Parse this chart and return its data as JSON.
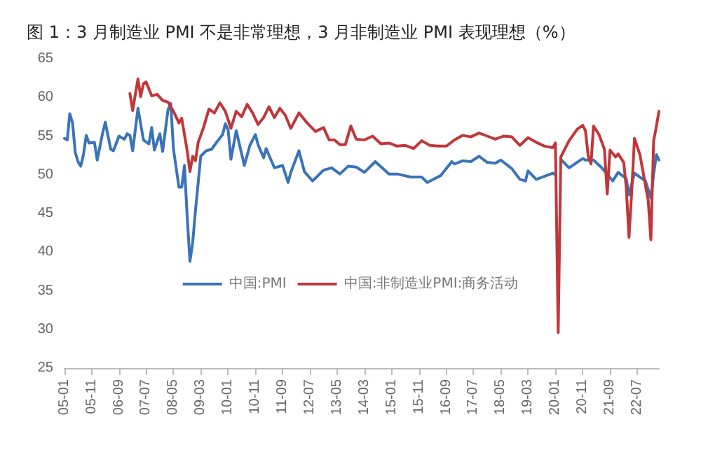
{
  "chart_data": {
    "type": "line",
    "title": "图 1：3 月制造业 PMI 不是非常理想，3 月非制造业 PMI 表现理想（%）",
    "xlim": [
      "2005-01",
      "2023-03"
    ],
    "xticks": [
      {
        "value": "2005-01",
        "label": "05-01"
      },
      {
        "value": "2005-11",
        "label": "05-11"
      },
      {
        "value": "2006-09",
        "label": "06-09"
      },
      {
        "value": "2007-07",
        "label": "07-07"
      },
      {
        "value": "2008-05",
        "label": "08-05"
      },
      {
        "value": "2009-03",
        "label": "09-03"
      },
      {
        "value": "2010-01",
        "label": "10-01"
      },
      {
        "value": "2010-11",
        "label": "10-11"
      },
      {
        "value": "2011-09",
        "label": "11-09"
      },
      {
        "value": "2012-07",
        "label": "12-07"
      },
      {
        "value": "2013-05",
        "label": "13-05"
      },
      {
        "value": "2014-03",
        "label": "14-03"
      },
      {
        "value": "2015-01",
        "label": "15-01"
      },
      {
        "value": "2015-11",
        "label": "15-11"
      },
      {
        "value": "2016-09",
        "label": "16-09"
      },
      {
        "value": "2017-07",
        "label": "17-07"
      },
      {
        "value": "2018-05",
        "label": "18-05"
      },
      {
        "value": "2019-03",
        "label": "19-03"
      },
      {
        "value": "2020-01",
        "label": "20-01"
      },
      {
        "value": "2020-11",
        "label": "20-11"
      },
      {
        "value": "2021-09",
        "label": "21-09"
      },
      {
        "value": "2022-07",
        "label": "22-07"
      }
    ],
    "ylim": [
      25,
      65
    ],
    "yticks": [
      25,
      30,
      35,
      40,
      45,
      50,
      55,
      60,
      65
    ],
    "grid": false,
    "legend": "bottom",
    "marker": "none",
    "line_style": "solid",
    "series": [
      {
        "name": "中国:PMI",
        "color": "#3b73b9",
        "x": [
          "2005-01",
          "2005-02",
          "2005-03",
          "2005-04",
          "2005-05",
          "2005-06",
          "2005-07",
          "2005-08",
          "2005-09",
          "2005-10",
          "2005-12",
          "2006-01",
          "2006-03",
          "2006-04",
          "2006-06",
          "2006-07",
          "2006-09",
          "2006-11",
          "2006-12",
          "2007-01",
          "2007-02",
          "2007-04",
          "2007-06",
          "2007-08",
          "2007-09",
          "2007-10",
          "2007-12",
          "2008-01",
          "2008-03",
          "2008-04",
          "2008-05",
          "2008-07",
          "2008-08",
          "2008-09",
          "2008-10",
          "2008-11",
          "2008-12",
          "2009-01",
          "2009-02",
          "2009-03",
          "2009-05",
          "2009-07",
          "2009-09",
          "2009-11",
          "2009-12",
          "2010-01",
          "2010-02",
          "2010-04",
          "2010-07",
          "2010-09",
          "2010-11",
          "2010-12",
          "2011-02",
          "2011-03",
          "2011-06",
          "2011-09",
          "2011-11",
          "2011-12",
          "2012-03",
          "2012-05",
          "2012-08",
          "2012-12",
          "2013-03",
          "2013-06",
          "2013-09",
          "2013-12",
          "2014-03",
          "2014-07",
          "2014-12",
          "2015-03",
          "2015-08",
          "2015-12",
          "2016-02",
          "2016-07",
          "2016-11",
          "2016-12",
          "2017-03",
          "2017-06",
          "2017-09",
          "2017-12",
          "2018-03",
          "2018-05",
          "2018-09",
          "2018-12",
          "2019-02",
          "2019-03",
          "2019-06",
          "2019-12",
          "2020-01",
          "2020-02",
          "2020-03",
          "2020-06",
          "2020-11",
          "2020-12",
          "2021-03",
          "2021-06",
          "2021-10",
          "2021-12",
          "2022-03",
          "2022-04",
          "2022-06",
          "2022-10",
          "2022-12",
          "2023-01",
          "2023-02",
          "2023-03"
        ],
        "values": [
          54.7,
          54.5,
          57.9,
          56.7,
          52.9,
          51.7,
          51.1,
          52.6,
          55.1,
          54.1,
          54.2,
          51.9,
          55.3,
          56.8,
          53.3,
          53.1,
          55.0,
          54.6,
          55.3,
          55.1,
          53.1,
          58.6,
          54.5,
          54.0,
          56.1,
          53.2,
          55.3,
          53.0,
          58.4,
          59.2,
          53.3,
          48.4,
          48.4,
          51.2,
          44.6,
          38.8,
          41.2,
          45.3,
          49.0,
          52.4,
          53.1,
          53.3,
          54.3,
          55.2,
          56.6,
          55.8,
          52.0,
          55.7,
          51.2,
          53.8,
          55.2,
          53.9,
          52.2,
          53.4,
          50.9,
          51.2,
          49.0,
          50.3,
          53.1,
          50.4,
          49.2,
          50.6,
          50.9,
          50.1,
          51.1,
          51.0,
          50.3,
          51.7,
          50.1,
          50.1,
          49.7,
          49.7,
          49.0,
          49.9,
          51.7,
          51.4,
          51.8,
          51.7,
          52.4,
          51.6,
          51.5,
          51.9,
          50.8,
          49.4,
          49.2,
          50.5,
          49.4,
          50.2,
          50.0,
          null,
          52.0,
          50.9,
          52.1,
          51.9,
          51.9,
          50.9,
          49.2,
          50.3,
          49.5,
          47.4,
          50.2,
          49.2,
          47.0,
          50.1,
          52.6,
          51.9
        ]
      },
      {
        "name": "中国:非制造业PMI:商务活动",
        "color": "#c0373a",
        "x": [
          "2007-01",
          "2007-02",
          "2007-03",
          "2007-04",
          "2007-05",
          "2007-06",
          "2007-07",
          "2007-09",
          "2007-11",
          "2008-01",
          "2008-03",
          "2008-05",
          "2008-07",
          "2008-08",
          "2008-10",
          "2008-11",
          "2008-12",
          "2009-01",
          "2009-02",
          "2009-04",
          "2009-06",
          "2009-08",
          "2009-10",
          "2009-12",
          "2010-02",
          "2010-04",
          "2010-06",
          "2010-08",
          "2010-10",
          "2010-12",
          "2011-02",
          "2011-04",
          "2011-06",
          "2011-08",
          "2011-10",
          "2011-12",
          "2012-03",
          "2012-06",
          "2012-09",
          "2012-12",
          "2013-02",
          "2013-04",
          "2013-06",
          "2013-08",
          "2013-10",
          "2013-12",
          "2014-03",
          "2014-06",
          "2014-09",
          "2014-12",
          "2015-03",
          "2015-06",
          "2015-09",
          "2015-12",
          "2016-03",
          "2016-06",
          "2016-09",
          "2016-12",
          "2017-03",
          "2017-06",
          "2017-09",
          "2017-12",
          "2018-03",
          "2018-06",
          "2018-09",
          "2018-12",
          "2019-03",
          "2019-06",
          "2019-09",
          "2019-12",
          "2020-01",
          "2020-02",
          "2020-03",
          "2020-06",
          "2020-09",
          "2020-11",
          "2020-12",
          "2021-01",
          "2021-02",
          "2021-03",
          "2021-05",
          "2021-07",
          "2021-08",
          "2021-09",
          "2021-11",
          "2021-12",
          "2022-02",
          "2022-03",
          "2022-04",
          "2022-05",
          "2022-06",
          "2022-08",
          "2022-09",
          "2022-10",
          "2022-11",
          "2022-12",
          "2023-01",
          "2023-02",
          "2023-03"
        ],
        "values": [
          60.5,
          58.3,
          60.3,
          62.4,
          60.1,
          61.8,
          62.0,
          60.2,
          60.4,
          59.6,
          59.4,
          58.2,
          56.7,
          57.3,
          53.1,
          50.4,
          52.4,
          51.8,
          54.2,
          56.1,
          58.5,
          58.0,
          59.3,
          58.2,
          56.0,
          58.2,
          57.5,
          59.1,
          58.0,
          56.5,
          57.4,
          58.8,
          57.4,
          58.6,
          57.7,
          56.0,
          58.0,
          56.7,
          55.6,
          56.1,
          54.5,
          54.5,
          53.9,
          53.9,
          56.3,
          54.6,
          54.5,
          55.0,
          54.0,
          54.1,
          53.7,
          53.8,
          53.4,
          54.4,
          53.8,
          53.7,
          53.7,
          54.5,
          55.1,
          54.9,
          55.4,
          55.0,
          54.6,
          55.0,
          54.9,
          53.8,
          54.8,
          54.2,
          53.7,
          53.5,
          54.1,
          29.6,
          52.3,
          54.4,
          55.9,
          56.4,
          55.7,
          52.4,
          51.4,
          56.3,
          55.2,
          53.3,
          47.5,
          53.2,
          52.3,
          52.7,
          51.6,
          48.4,
          41.9,
          47.8,
          54.7,
          52.6,
          50.6,
          48.7,
          46.7,
          41.6,
          54.4,
          56.3,
          58.2
        ]
      }
    ]
  }
}
